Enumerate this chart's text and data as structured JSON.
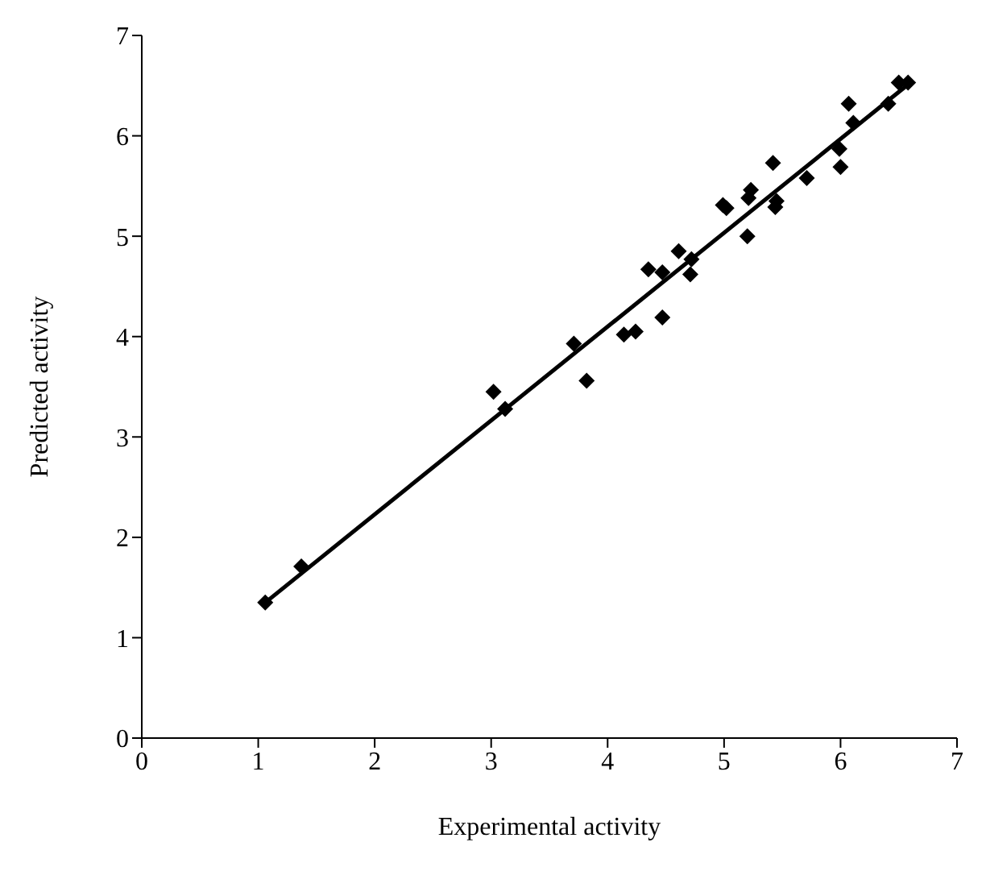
{
  "chart_data": {
    "type": "scatter",
    "xlabel": "Experimental activity",
    "ylabel": "Predicted activity",
    "xlim": [
      0,
      7
    ],
    "ylim": [
      0,
      7
    ],
    "xticks": [
      0,
      1,
      2,
      3,
      4,
      5,
      6,
      7
    ],
    "yticks": [
      0,
      1,
      2,
      3,
      4,
      5,
      6,
      7
    ],
    "marker": "diamond",
    "series": [
      {
        "color": "#000000",
        "x": [
          1.06,
          1.37,
          3.02,
          3.12,
          3.71,
          3.82,
          4.14,
          4.24,
          4.35,
          4.47,
          4.47,
          4.61,
          4.71,
          4.72,
          4.99,
          5.02,
          5.2,
          5.21,
          5.23,
          5.42,
          5.44,
          5.45,
          5.71,
          5.99,
          6.0,
          6.07,
          6.11,
          6.41,
          6.5,
          6.58
        ],
        "values": [
          1.35,
          1.71,
          3.45,
          3.28,
          3.93,
          3.56,
          4.02,
          4.05,
          4.67,
          4.64,
          4.19,
          4.85,
          4.62,
          4.77,
          5.31,
          5.28,
          5.0,
          5.38,
          5.46,
          5.73,
          5.29,
          5.35,
          5.58,
          5.87,
          5.69,
          6.32,
          6.13,
          6.32,
          6.53,
          6.53
        ]
      },
      {
        "type": "line",
        "color": "#000000",
        "marker": "none",
        "line_style": "solid",
        "x": [
          1.06,
          6.6
        ],
        "values": [
          1.35,
          6.53
        ]
      }
    ]
  }
}
